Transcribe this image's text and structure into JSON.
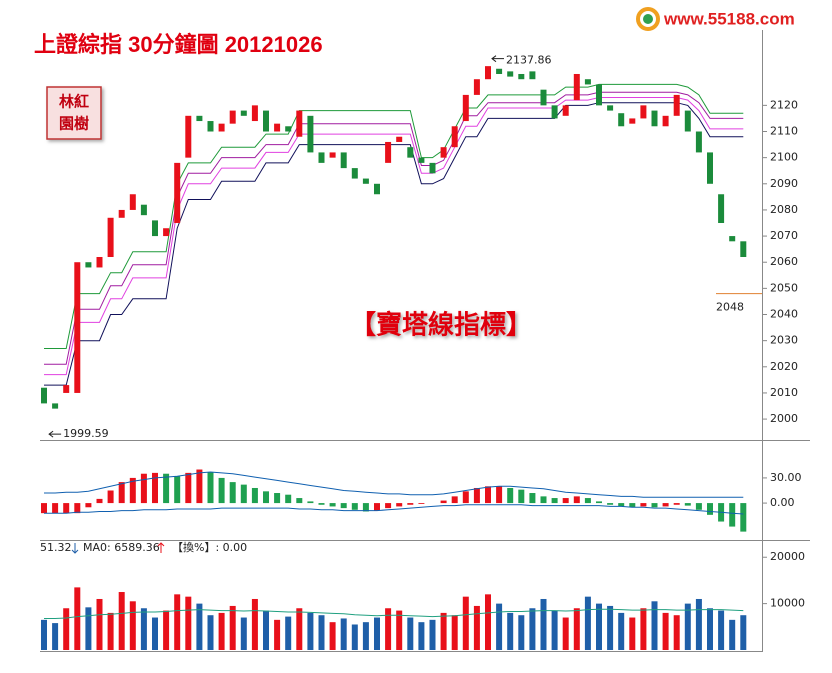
{
  "header": {
    "title": "上證綜指  30分鐘圖  20121026",
    "badge": [
      "林紅",
      "園樹"
    ],
    "logo": "www.55188.com"
  },
  "chart_data": [
    {
      "type": "candlestick",
      "up_color": "#e8101a",
      "down_color": "#1b8b3b",
      "open": [
        2012,
        2006,
        2010,
        2010,
        2060,
        2058,
        2062,
        2077,
        2080,
        2082,
        2076,
        2070,
        2075,
        2100,
        2116,
        2114,
        2110,
        2113,
        2118,
        2114,
        2118,
        2110,
        2112,
        2108,
        2116,
        2102,
        2100,
        2102,
        2096,
        2092,
        2090,
        2098,
        2106,
        2104,
        2100,
        2098,
        2100,
        2104,
        2114,
        2124,
        2130,
        2134,
        2133,
        2132,
        2133,
        2126,
        2120,
        2116,
        2122,
        2130,
        2128,
        2120,
        2117,
        2113,
        2115,
        2118,
        2112,
        2116,
        2118,
        2110,
        2102,
        2086,
        2070,
        2068
      ],
      "close": [
        2006,
        2004,
        2013,
        2060,
        2058,
        2062,
        2077,
        2080,
        2086,
        2078,
        2070,
        2073,
        2098,
        2116,
        2114,
        2110,
        2113,
        2118,
        2116,
        2120,
        2110,
        2113,
        2110,
        2118,
        2102,
        2098,
        2102,
        2096,
        2092,
        2090,
        2086,
        2106,
        2108,
        2100,
        2098,
        2094,
        2104,
        2112,
        2124,
        2130,
        2135,
        2132,
        2131,
        2130,
        2130,
        2120,
        2115,
        2120,
        2132,
        2128,
        2120,
        2118,
        2112,
        2115,
        2120,
        2112,
        2116,
        2124,
        2110,
        2102,
        2090,
        2075,
        2068,
        2062
      ],
      "series": [
        {
          "color": "#1f9a3a",
          "values": [
            2027,
            2027,
            2027,
            2048,
            2048,
            2048,
            2056,
            2056,
            2064,
            2064,
            2064,
            2064,
            2090,
            2098,
            2098,
            2098,
            2104,
            2104,
            2104,
            2104,
            2109,
            2109,
            2109,
            2118,
            2118,
            2118,
            2118,
            2118,
            2118,
            2118,
            2118,
            2118,
            2118,
            2118,
            2100,
            2100,
            2103,
            2111,
            2119,
            2119,
            2124,
            2124,
            2124,
            2124,
            2124,
            2124,
            2124,
            2127,
            2127,
            2127,
            2128,
            2128,
            2128,
            2128,
            2128,
            2128,
            2128,
            2128,
            2127,
            2124,
            2117,
            2117,
            2117,
            2117
          ]
        },
        {
          "color": "#a01ca0",
          "values": [
            2021,
            2021,
            2021,
            2042,
            2042,
            2042,
            2051,
            2051,
            2059,
            2059,
            2059,
            2059,
            2085,
            2094,
            2094,
            2094,
            2100,
            2100,
            2100,
            2100,
            2105,
            2105,
            2105,
            2113,
            2113,
            2113,
            2113,
            2113,
            2113,
            2113,
            2113,
            2113,
            2113,
            2113,
            2097,
            2097,
            2099,
            2107,
            2116,
            2116,
            2121,
            2121,
            2121,
            2121,
            2121,
            2121,
            2121,
            2124,
            2124,
            2124,
            2125,
            2125,
            2125,
            2125,
            2125,
            2125,
            2125,
            2125,
            2124,
            2121,
            2115,
            2115,
            2115,
            2115
          ]
        },
        {
          "color": "#e040e0",
          "values": [
            2017,
            2017,
            2017,
            2037,
            2037,
            2037,
            2046,
            2046,
            2054,
            2054,
            2054,
            2054,
            2080,
            2090,
            2090,
            2090,
            2096,
            2096,
            2096,
            2096,
            2102,
            2102,
            2102,
            2109,
            2109,
            2109,
            2109,
            2109,
            2109,
            2109,
            2109,
            2109,
            2109,
            2109,
            2094,
            2094,
            2096,
            2104,
            2112,
            2112,
            2119,
            2119,
            2119,
            2119,
            2119,
            2119,
            2119,
            2122,
            2122,
            2122,
            2123,
            2123,
            2123,
            2123,
            2123,
            2123,
            2123,
            2123,
            2122,
            2118,
            2111,
            2111,
            2111,
            2111
          ]
        },
        {
          "color": "#10105a",
          "values": [
            2013,
            2013,
            2013,
            2030,
            2030,
            2030,
            2040,
            2040,
            2046,
            2046,
            2046,
            2046,
            2073,
            2084,
            2084,
            2084,
            2091,
            2091,
            2091,
            2091,
            2098,
            2098,
            2098,
            2105,
            2105,
            2105,
            2105,
            2105,
            2105,
            2105,
            2105,
            2105,
            2105,
            2105,
            2090,
            2090,
            2092,
            2100,
            2108,
            2108,
            2115,
            2115,
            2115,
            2115,
            2115,
            2115,
            2115,
            2120,
            2120,
            2120,
            2121,
            2121,
            2121,
            2121,
            2121,
            2121,
            2121,
            2121,
            2120,
            2115,
            2108,
            2108,
            2108,
            2108
          ]
        }
      ],
      "high": 2137.86,
      "low": 1999.59,
      "level": 2048,
      "level_color": "#e08030",
      "overlay_label": "【寶塔線指標】",
      "ylim": [
        1992,
        2145
      ],
      "yticks": [
        2000,
        2010,
        2020,
        2030,
        2040,
        2050,
        2060,
        2070,
        2080,
        2090,
        2100,
        2110,
        2120
      ]
    },
    {
      "type": "macd",
      "up_color": "#e8101a",
      "down_color": "#1fa050",
      "values": [
        -12,
        -12,
        -12,
        -12,
        -5,
        5,
        15,
        25,
        30,
        35,
        36,
        35,
        32,
        36,
        40,
        37,
        30,
        25,
        22,
        18,
        14,
        12,
        10,
        6,
        2,
        -2,
        -4,
        -6,
        -8,
        -10,
        -9,
        -6,
        -4,
        -2,
        -1,
        0,
        3,
        8,
        14,
        18,
        20,
        20,
        18,
        16,
        12,
        8,
        6,
        6,
        8,
        6,
        2,
        -2,
        -4,
        -5,
        -4,
        -5,
        -4,
        -2,
        -3,
        -8,
        -14,
        -22,
        -28,
        -34
      ],
      "series": [
        {
          "color": "#1060b0",
          "values": [
            12,
            12,
            13,
            13,
            14,
            17,
            20,
            23,
            26,
            28,
            30,
            31,
            32,
            34,
            36,
            37,
            36,
            35,
            33,
            31,
            29,
            27,
            25,
            23,
            21,
            19,
            17,
            15,
            14,
            13,
            12,
            11,
            11,
            10,
            10,
            10,
            11,
            13,
            15,
            17,
            19,
            20,
            20,
            19,
            18,
            17,
            15,
            13,
            12,
            11,
            10,
            9,
            8,
            8,
            7,
            7,
            7,
            7,
            7,
            7,
            7,
            7,
            7,
            7
          ]
        },
        {
          "color": "#1060b0",
          "values": [
            -12,
            -12,
            -12,
            -11,
            -11,
            -10,
            -10,
            -9,
            -9,
            -8,
            -8,
            -8,
            -7,
            -7,
            -7,
            -7,
            -6,
            -6,
            -6,
            -6,
            -6,
            -6,
            -6,
            -7,
            -7,
            -8,
            -8,
            -9,
            -9,
            -9,
            -9,
            -8,
            -7,
            -6,
            -5,
            -4,
            -3,
            -3,
            -2,
            -2,
            -2,
            -2,
            -2,
            -2,
            -3,
            -3,
            -3,
            -3,
            -3,
            -3,
            -3,
            -4,
            -4,
            -5,
            -5,
            -6,
            -6,
            -7,
            -8,
            -9,
            -10,
            -11,
            -12,
            -13
          ]
        }
      ],
      "ylim": [
        -44,
        74
      ],
      "yticks": [
        {
          "value": 30,
          "label": "30.00"
        },
        {
          "value": 0,
          "label": "0.00"
        }
      ]
    },
    {
      "type": "volume",
      "up_color": "#e8101a",
      "down_color": "#1f5fa8",
      "legend": [
        "51.32",
        "MA0: 6589.36",
        "【換%】: 0.00"
      ],
      "values": [
        6500,
        5800,
        9000,
        13500,
        9200,
        11000,
        8000,
        12500,
        10500,
        9000,
        7000,
        8500,
        12000,
        11500,
        10000,
        7500,
        8000,
        9500,
        7000,
        11000,
        8500,
        6500,
        7200,
        9000,
        8000,
        7500,
        6000,
        6800,
        5500,
        6000,
        7000,
        9000,
        8500,
        7000,
        6000,
        6500,
        8000,
        7500,
        11500,
        9500,
        12000,
        10000,
        8000,
        7500,
        9000,
        11000,
        8500,
        7000,
        9000,
        11500,
        10000,
        9500,
        8000,
        7000,
        9000,
        10500,
        8000,
        7500,
        10000,
        11000,
        9000,
        8500,
        6500,
        7500
      ],
      "series": [
        {
          "color": "#20a080",
          "values": [
            6800,
            6800,
            6900,
            7200,
            7400,
            7600,
            7700,
            7900,
            8100,
            8200,
            8200,
            8300,
            8500,
            8600,
            8700,
            8600,
            8500,
            8500,
            8400,
            8500,
            8400,
            8300,
            8200,
            8200,
            8100,
            8000,
            7900,
            7800,
            7600,
            7500,
            7400,
            7500,
            7500,
            7400,
            7300,
            7200,
            7300,
            7400,
            7600,
            7800,
            8000,
            8200,
            8300,
            8300,
            8400,
            8500,
            8500,
            8400,
            8500,
            8700,
            8800,
            8800,
            8700,
            8600,
            8600,
            8700,
            8700,
            8600,
            8600,
            8700,
            8700,
            8700,
            8600,
            8500
          ]
        }
      ],
      "ylim": [
        0,
        23500
      ],
      "yticks": [
        {
          "value": 10000,
          "label": "10000"
        },
        {
          "value": 20000,
          "label": "20000"
        }
      ]
    }
  ]
}
